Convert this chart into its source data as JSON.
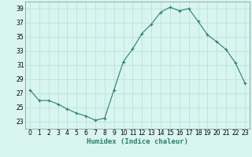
{
  "x": [
    0,
    1,
    2,
    3,
    4,
    5,
    6,
    7,
    8,
    9,
    10,
    11,
    12,
    13,
    14,
    15,
    16,
    17,
    18,
    19,
    20,
    21,
    22,
    23
  ],
  "y": [
    27.5,
    26.0,
    26.0,
    25.5,
    24.8,
    24.2,
    23.8,
    23.2,
    23.5,
    27.5,
    31.5,
    33.3,
    35.5,
    36.8,
    38.5,
    39.2,
    38.7,
    39.0,
    37.2,
    35.3,
    34.3,
    33.2,
    31.3,
    28.5
  ],
  "xlabel": "Humidex (Indice chaleur)",
  "ylabel": "",
  "xlim": [
    -0.5,
    23.5
  ],
  "ylim": [
    22.0,
    40.0
  ],
  "yticks": [
    23,
    25,
    27,
    29,
    31,
    33,
    35,
    37,
    39
  ],
  "xticks": [
    0,
    1,
    2,
    3,
    4,
    5,
    6,
    7,
    8,
    9,
    10,
    11,
    12,
    13,
    14,
    15,
    16,
    17,
    18,
    19,
    20,
    21,
    22,
    23
  ],
  "line_color": "#2e7d6e",
  "marker": "+",
  "bg_color": "#d8f5f0",
  "grid_color": "#b8ddd8",
  "axis_color": "#888888",
  "label_fontsize": 6.5,
  "tick_fontsize": 5.5
}
